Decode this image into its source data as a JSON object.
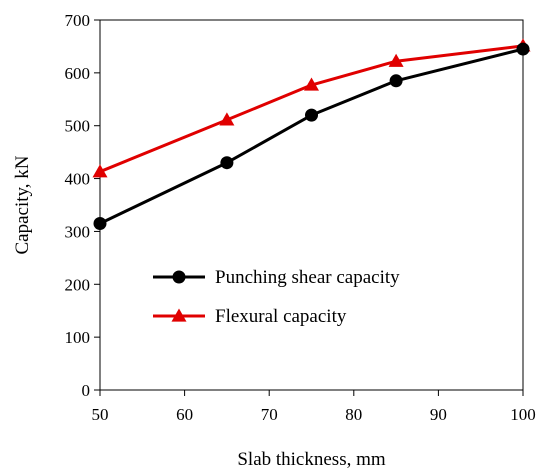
{
  "chart_data": {
    "type": "line",
    "title": "",
    "xlabel": "Slab thickness, mm",
    "ylabel": "Capacity, kN",
    "xlim": [
      50,
      100
    ],
    "ylim": [
      0,
      700
    ],
    "xticks": [
      50,
      60,
      70,
      80,
      90,
      100
    ],
    "yticks": [
      0,
      100,
      200,
      300,
      400,
      500,
      600,
      700
    ],
    "grid": false,
    "legend_position": "lower-center",
    "series": [
      {
        "name": "Punching shear capacity",
        "color": "#000000",
        "marker": "circle",
        "x": [
          50,
          65,
          75,
          85,
          100
        ],
        "y": [
          315,
          430,
          520,
          585,
          645
        ]
      },
      {
        "name": "Flexural capacity",
        "color": "#e00000",
        "marker": "triangle",
        "x": [
          50,
          65,
          75,
          85,
          100
        ],
        "y": [
          413,
          511,
          577,
          622,
          651
        ]
      }
    ]
  }
}
